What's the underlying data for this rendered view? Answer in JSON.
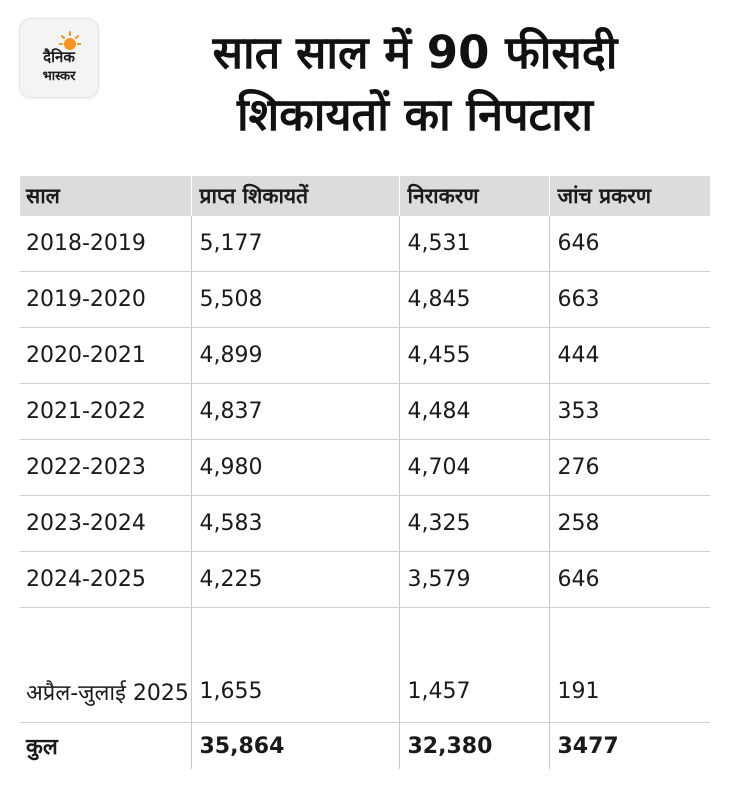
{
  "brand": {
    "line1": "दैनिक",
    "line2": "भास्कर",
    "accent": "#f7931e"
  },
  "title": {
    "line1": "सात साल में 90 फीसदी",
    "line2": "शिकायतों का निपटारा"
  },
  "table": {
    "headers": [
      "साल",
      "प्राप्त शिकायतें",
      "निराकरण",
      "जांच प्रकरण"
    ],
    "rows": [
      [
        "2018-2019",
        "5,177",
        "4,531",
        "646"
      ],
      [
        "2019-2020",
        "5,508",
        "4,845",
        "663"
      ],
      [
        "2020-2021",
        "4,899",
        "4,455",
        "444"
      ],
      [
        "2021-2022",
        "4,837",
        "4,484",
        "353"
      ],
      [
        "2022-2023",
        "4,980",
        "4,704",
        "276"
      ],
      [
        "2023-2024",
        "4,583",
        "4,325",
        "258"
      ],
      [
        "2024-2025",
        "4,225",
        "3,579",
        "646"
      ],
      [
        "अप्रैल-जुलाई 2025",
        "1,655",
        "1,457",
        "191"
      ]
    ],
    "total": [
      "कुल",
      "35,864",
      "32,380",
      "3477"
    ]
  }
}
